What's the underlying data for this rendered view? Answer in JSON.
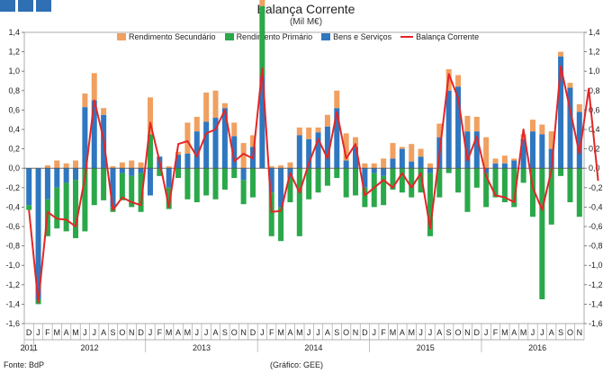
{
  "chart_data": {
    "type": "bar",
    "title": "Balança Corrente",
    "subtitle": "(Mil M€)",
    "ylim": [
      -1.6,
      1.4
    ],
    "yticks": [
      "1,4",
      "1,2",
      "1,0",
      "0,8",
      "0,6",
      "0,4",
      "0,2",
      "0,0",
      "-0,2",
      "-0,4",
      "-0,6",
      "-0,8",
      "-1,0",
      "-1,2",
      "-1,4",
      "-1,6"
    ],
    "month_labels": [
      "D",
      "J",
      "F",
      "M",
      "A",
      "M",
      "J",
      "J",
      "A",
      "S",
      "O",
      "N",
      "D",
      "J",
      "F",
      "M",
      "A",
      "M",
      "J",
      "J",
      "A",
      "S",
      "O",
      "N",
      "D",
      "J",
      "F",
      "M",
      "A",
      "M",
      "J",
      "J",
      "A",
      "S",
      "O",
      "N",
      "D",
      "J",
      "F",
      "M",
      "A",
      "M",
      "J",
      "J",
      "A",
      "S",
      "O",
      "N",
      "D",
      "J",
      "F",
      "M",
      "A",
      "M",
      "J",
      "J",
      "A",
      "S",
      "O",
      "N"
    ],
    "year_labels": [
      "2011",
      "2012",
      "2013",
      "2014",
      "2015",
      "2016"
    ],
    "legend": {
      "secundario": "Rendimento Secundário",
      "primario": "Rendimento Primário",
      "bens": "Bens e Serviços",
      "balanca": "Balança Corrente"
    },
    "colors": {
      "secundario": "#f0a060",
      "primario": "#2aa84a",
      "bens": "#2f77c0",
      "balanca": "#e32626",
      "brand": "#2f6fb3"
    },
    "series": [
      {
        "name": "Bens e Serviços",
        "values": [
          -0.38,
          -1.35,
          -0.32,
          -0.2,
          -0.15,
          -0.12,
          0.63,
          0.7,
          0.55,
          -0.4,
          -0.05,
          -0.08,
          -0.05,
          -0.28,
          0.12,
          -0.2,
          0.14,
          0.15,
          0.38,
          0.48,
          0.52,
          0.62,
          0.33,
          -0.12,
          0.22,
          0.95,
          -0.25,
          -0.4,
          -0.1,
          0.34,
          0.3,
          0.37,
          0.43,
          0.62,
          0.08,
          0.22,
          -0.2,
          -0.05,
          -0.08,
          0.1,
          0.2,
          0.07,
          0.12,
          -0.05,
          0.32,
          0.8,
          0.84,
          0.38,
          0.38,
          -0.05,
          0.05,
          0.05,
          0.08,
          0.3,
          0.38,
          0.35,
          0.2,
          1.15,
          0.83,
          0.58,
          0.6,
          -0.15
        ]
      },
      {
        "name": "Rendimento Primário",
        "values": [
          -0.05,
          -0.05,
          -0.38,
          -0.42,
          -0.5,
          -0.6,
          -0.65,
          -0.38,
          -0.33,
          -0.05,
          -0.28,
          -0.32,
          -0.4,
          0.35,
          -0.08,
          -0.22,
          -0.1,
          -0.32,
          -0.35,
          -0.28,
          -0.32,
          -0.22,
          -0.1,
          -0.25,
          -0.3,
          0.72,
          -0.45,
          -0.35,
          -0.25,
          -0.7,
          -0.32,
          -0.25,
          -0.18,
          -0.1,
          -0.3,
          -0.28,
          -0.2,
          -0.35,
          -0.3,
          -0.22,
          -0.25,
          -0.3,
          -0.25,
          -0.65,
          -0.3,
          -0.05,
          -0.25,
          -0.45,
          -0.2,
          -0.35,
          -0.3,
          -0.35,
          -0.4,
          -0.15,
          -0.5,
          -1.35,
          -0.58,
          -0.08,
          -0.35,
          -0.5,
          0.1,
          -0.3
        ]
      },
      {
        "name": "Rendimento Secundário",
        "values": [
          0.0,
          0.0,
          0.03,
          0.08,
          0.05,
          0.08,
          0.14,
          0.28,
          0.07,
          0.02,
          0.06,
          0.08,
          0.06,
          0.38,
          0.0,
          0.02,
          0.03,
          0.32,
          0.15,
          0.3,
          0.28,
          0.05,
          0.14,
          0.26,
          0.12,
          0.1,
          0.02,
          0.03,
          0.06,
          0.08,
          0.12,
          0.05,
          0.12,
          0.18,
          0.28,
          0.1,
          0.05,
          0.05,
          0.1,
          0.16,
          0.02,
          0.18,
          0.08,
          0.05,
          0.14,
          0.22,
          0.12,
          0.16,
          0.15,
          0.32,
          0.05,
          0.08,
          0.02,
          0.05,
          0.12,
          0.1,
          0.18,
          0.05,
          0.05,
          0.08,
          0.2,
          0.15
        ]
      },
      {
        "name": "Balança Corrente",
        "values": [
          -0.43,
          -1.38,
          -0.45,
          -0.52,
          -0.53,
          -0.6,
          -0.1,
          0.7,
          0.3,
          -0.43,
          -0.3,
          -0.35,
          -0.38,
          0.47,
          0.07,
          -0.4,
          0.25,
          0.28,
          0.12,
          0.36,
          0.4,
          0.6,
          0.07,
          0.15,
          0.1,
          1.03,
          -0.45,
          -0.44,
          -0.05,
          -0.25,
          0.05,
          0.3,
          0.1,
          0.58,
          0.1,
          0.25,
          -0.28,
          -0.2,
          -0.12,
          -0.2,
          -0.05,
          -0.2,
          -0.05,
          -0.62,
          0.15,
          0.97,
          0.72,
          0.08,
          0.33,
          -0.08,
          -0.28,
          -0.3,
          -0.35,
          0.4,
          -0.2,
          -0.43,
          -0.02,
          1.05,
          0.6,
          0.15,
          0.82,
          -0.13
        ]
      }
    ],
    "source": "Fonte: BdP",
    "credit": "(Gráfico: GEE)"
  }
}
